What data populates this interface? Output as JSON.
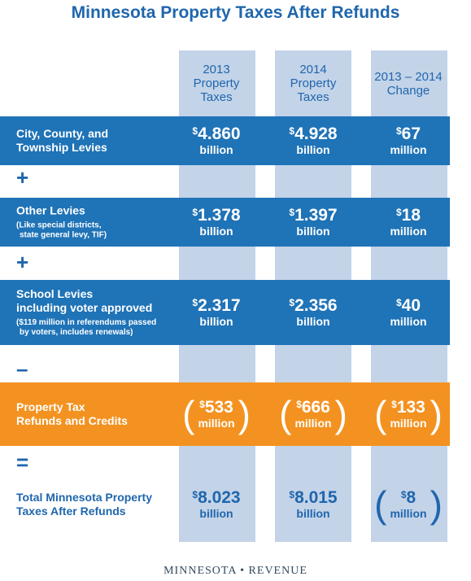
{
  "header": {
    "title": "Minnesota Property Taxes After Refunds"
  },
  "columns": [
    {
      "label": [
        "2013",
        "Property",
        "Taxes"
      ]
    },
    {
      "label": [
        "2014",
        "Property",
        "Taxes"
      ]
    },
    {
      "label": [
        "2013 – 2014",
        "Change"
      ]
    }
  ],
  "rows": [
    {
      "label": [
        "City, County, and",
        "Township Levies"
      ],
      "cells": [
        {
          "currency": "$",
          "amount": "4.860",
          "unit": "billion"
        },
        {
          "currency": "$",
          "amount": "4.928",
          "unit": "billion"
        },
        {
          "currency": "$",
          "amount": "67",
          "unit": "million"
        }
      ]
    },
    {
      "label": [
        "Other Levies"
      ],
      "note": [
        "(Like special districts,",
        "state general levy, TIF)"
      ],
      "cells": [
        {
          "currency": "$",
          "amount": "1.378",
          "unit": "billion"
        },
        {
          "currency": "$",
          "amount": "1.397",
          "unit": "billion"
        },
        {
          "currency": "$",
          "amount": "18",
          "unit": "million"
        }
      ]
    },
    {
      "label": [
        "School Levies",
        "including voter approved"
      ],
      "note": [
        "($119 million in referendums passed",
        "by voters, includes renewals)"
      ],
      "cells": [
        {
          "currency": "$",
          "amount": "2.317",
          "unit": "billion"
        },
        {
          "currency": "$",
          "amount": "2.356",
          "unit": "billion"
        },
        {
          "currency": "$",
          "amount": "40",
          "unit": "million"
        }
      ]
    },
    {
      "label": [
        "Property Tax",
        "Refunds and Credits"
      ],
      "cells": [
        {
          "currency": "$",
          "amount": "533",
          "unit": "million",
          "brackets": [
            "(",
            ")"
          ]
        },
        {
          "currency": "$",
          "amount": "666",
          "unit": "million",
          "brackets": [
            "(",
            ")"
          ]
        },
        {
          "currency": "$",
          "amount": "133",
          "unit": "million",
          "brackets": [
            "(",
            ")"
          ]
        }
      ]
    },
    {
      "label": [
        "Total Minnesota Property",
        "Taxes After Refunds"
      ],
      "cells": [
        {
          "currency": "$",
          "amount": "8.023",
          "unit": "billion"
        },
        {
          "currency": "$",
          "amount": "8.015",
          "unit": "billion"
        },
        {
          "currency": "$",
          "amount": "8",
          "unit": "million",
          "brackets": [
            "(",
            ")"
          ]
        }
      ]
    }
  ],
  "operators": [
    "+",
    "+",
    "–",
    "="
  ],
  "footer": {
    "text": "MINNESOTA • REVENUE"
  }
}
